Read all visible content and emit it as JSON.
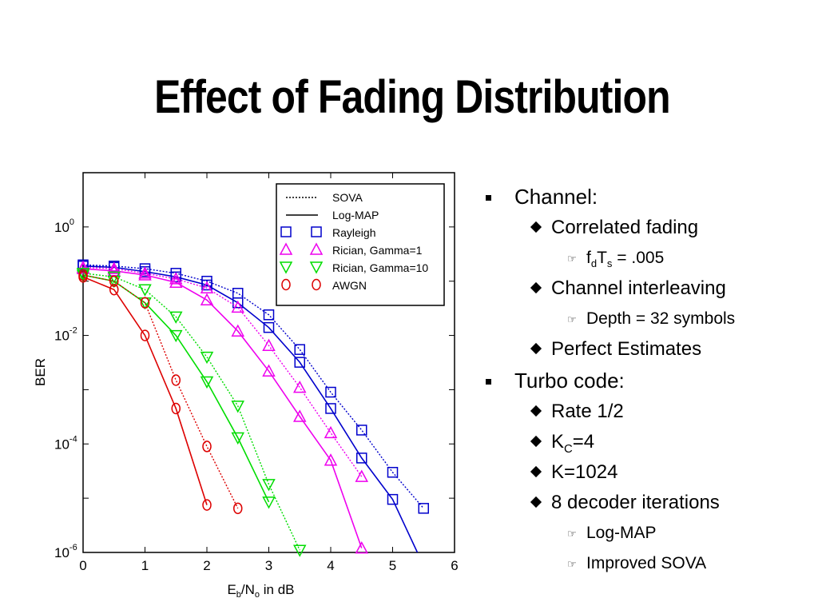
{
  "title": "Effect of Fading Distribution",
  "chart_data": {
    "type": "line",
    "xlabel": "E_b/N_o in dB",
    "ylabel": "BER",
    "xlim": [
      0,
      6
    ],
    "ylim_log10": [
      -6,
      1
    ],
    "y_scale": "log",
    "x_ticks": [
      0,
      1,
      2,
      3,
      4,
      5,
      6
    ],
    "y_ticks": [
      {
        "base": "10",
        "exp": "0",
        "value": 1
      },
      {
        "base": "10",
        "exp": "-2",
        "value": 0.01
      },
      {
        "base": "10",
        "exp": "-4",
        "value": 0.0001
      },
      {
        "base": "10",
        "exp": "-6",
        "value": 1e-06
      }
    ],
    "legend_position": "top-right",
    "legend": [
      {
        "label": "SOVA",
        "kind": "line",
        "dash": "dotted"
      },
      {
        "label": "Log-MAP",
        "kind": "line",
        "dash": "solid"
      },
      {
        "label": "Rayleigh",
        "kind": "marker",
        "marker": "square",
        "color": "#0000cc"
      },
      {
        "label": "Rician, Gamma=1",
        "kind": "marker",
        "marker": "triangle-up",
        "color": "#ee00ee"
      },
      {
        "label": "Rician, Gamma=10",
        "kind": "marker",
        "marker": "triangle-down",
        "color": "#00dd00"
      },
      {
        "label": "AWGN",
        "kind": "marker",
        "marker": "circle",
        "color": "#dd0000"
      }
    ],
    "series": [
      {
        "channel": "Rayleigh",
        "decoder": "SOVA",
        "dash": "dotted",
        "marker": "square",
        "color": "#0000cc",
        "x": [
          0,
          0.5,
          1,
          1.5,
          2,
          2.5,
          3,
          3.5,
          4,
          4.5,
          5,
          5.5
        ],
        "y": [
          0.2,
          0.19,
          0.17,
          0.14,
          0.1,
          0.06,
          0.024,
          0.0055,
          0.0009,
          0.00018,
          3e-05,
          6.5e-06
        ]
      },
      {
        "channel": "Rayleigh",
        "decoder": "Log-MAP",
        "dash": "solid",
        "marker": "square",
        "color": "#0000cc",
        "x": [
          0,
          0.5,
          1,
          1.5,
          2,
          2.5,
          3,
          3.5,
          4,
          4.5,
          5,
          5.4
        ],
        "y": [
          0.19,
          0.18,
          0.15,
          0.12,
          0.085,
          0.04,
          0.014,
          0.0032,
          0.00045,
          5.5e-05,
          9.5e-06,
          1e-06
        ]
      },
      {
        "channel": "Rician, Gamma=1",
        "decoder": "SOVA",
        "dash": "dotted",
        "marker": "triangle-up",
        "color": "#ee00ee",
        "x": [
          0,
          0.5,
          1,
          1.5,
          2,
          2.5,
          3,
          3.5,
          4,
          4.5
        ],
        "y": [
          0.18,
          0.17,
          0.14,
          0.11,
          0.075,
          0.033,
          0.0065,
          0.0011,
          0.00016,
          2.5e-05
        ]
      },
      {
        "channel": "Rician, Gamma=1",
        "decoder": "Log-MAP",
        "dash": "solid",
        "marker": "triangle-up",
        "color": "#ee00ee",
        "x": [
          0,
          0.5,
          1,
          1.5,
          2,
          2.5,
          3,
          3.5,
          4,
          4.5
        ],
        "y": [
          0.17,
          0.155,
          0.13,
          0.095,
          0.045,
          0.012,
          0.0022,
          0.00032,
          5e-05,
          1.2e-06
        ]
      },
      {
        "channel": "Rician, Gamma=10",
        "decoder": "SOVA",
        "dash": "dotted",
        "marker": "triangle-down",
        "color": "#00dd00",
        "x": [
          0,
          0.5,
          1,
          1.5,
          2,
          2.5,
          3,
          3.5
        ],
        "y": [
          0.14,
          0.12,
          0.07,
          0.022,
          0.004,
          0.0005,
          1.8e-05,
          1.1e-06
        ]
      },
      {
        "channel": "Rician, Gamma=10",
        "decoder": "Log-MAP",
        "dash": "solid",
        "marker": "triangle-down",
        "color": "#00dd00",
        "x": [
          0,
          0.5,
          1,
          1.5,
          2,
          2.5,
          3
        ],
        "y": [
          0.13,
          0.1,
          0.04,
          0.01,
          0.0014,
          0.00013,
          8.5e-06
        ]
      },
      {
        "channel": "AWGN",
        "decoder": "SOVA",
        "dash": "dotted",
        "marker": "circle",
        "color": "#dd0000",
        "x": [
          0,
          0.5,
          1,
          1.5,
          2,
          2.5
        ],
        "y": [
          0.13,
          0.1,
          0.04,
          0.0015,
          9e-05,
          6.5e-06
        ]
      },
      {
        "channel": "AWGN",
        "decoder": "Log-MAP",
        "dash": "solid",
        "marker": "circle",
        "color": "#dd0000",
        "x": [
          0,
          0.5,
          1,
          1.5,
          2
        ],
        "y": [
          0.12,
          0.07,
          0.01,
          0.00045,
          7.5e-06
        ]
      }
    ]
  },
  "bullets": [
    {
      "text": "Channel:",
      "children": [
        {
          "text": "Correlated fading",
          "children": [
            {
              "parts": [
                {
                  "t": "f"
                },
                {
                  "t": "d",
                  "sub": true
                },
                {
                  "t": "T"
                },
                {
                  "t": "s",
                  "sub": true
                },
                {
                  "t": " = .005"
                }
              ]
            }
          ]
        },
        {
          "text": "Channel interleaving",
          "children": [
            {
              "text": "Depth = 32 symbols"
            }
          ]
        },
        {
          "text": "Perfect Estimates"
        }
      ]
    },
    {
      "text": "Turbo code:",
      "children": [
        {
          "text": "Rate 1/2"
        },
        {
          "parts": [
            {
              "t": "K"
            },
            {
              "t": "C",
              "sub": true
            },
            {
              "t": "=4"
            }
          ]
        },
        {
          "text": "K=1024"
        },
        {
          "text": "8 decoder iterations",
          "children": [
            {
              "text": "Log-MAP"
            },
            {
              "text": "Improved SOVA"
            }
          ]
        }
      ]
    }
  ]
}
